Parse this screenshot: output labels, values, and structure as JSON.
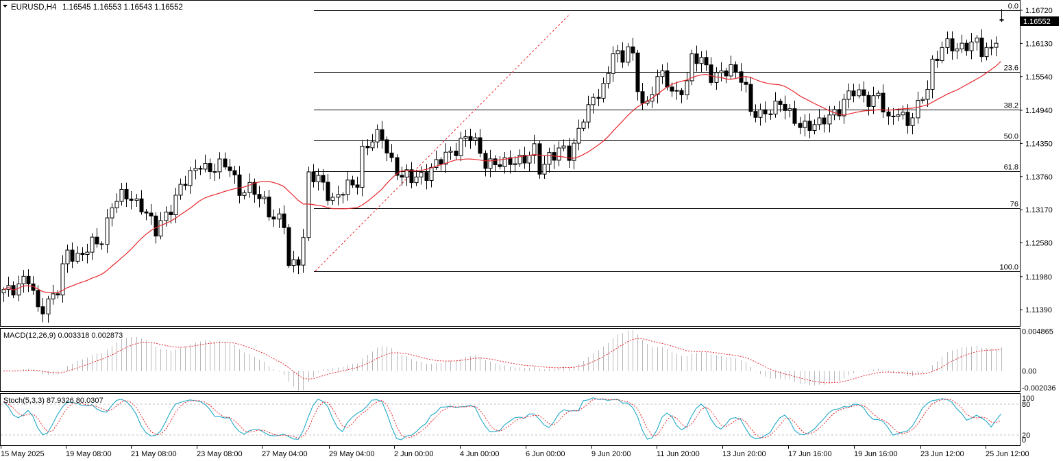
{
  "header": {
    "symbol_label": "EURUSD,H4",
    "ohlc": "1.16545 1.16553 1.16543 1.16552"
  },
  "price_axis": {
    "labels": [
      "1.16720",
      "1.16130",
      "1.15540",
      "1.14940",
      "1.14350",
      "1.13760",
      "1.13170",
      "1.12580",
      "1.11980",
      "1.11390"
    ],
    "current_price": "1.16552"
  },
  "fibonacci": {
    "levels": [
      "0.0",
      "23.6",
      "38.2",
      "50.0",
      "61.8",
      "76",
      "100.0"
    ],
    "ratios": [
      0,
      0.236,
      0.382,
      0.5,
      0.618,
      0.76,
      1.0
    ],
    "high": 1.1672,
    "low": 1.1208
  },
  "macd": {
    "label": "MACD(12,26,9) 0.003318 0.002873",
    "axis_labels": [
      "0.004865",
      "0.00",
      "-0.002036"
    ]
  },
  "stoch": {
    "label": "Stoch(5,3,3) 87.9326 80.0307",
    "axis_labels": [
      "100",
      "80",
      "20",
      "0"
    ]
  },
  "time_axis": {
    "labels": [
      "15 May 2025",
      "19 May 08:00",
      "21 May 08:00",
      "23 May 08:00",
      "27 May 04:00",
      "29 May 04:00",
      "2 Jun 00:00",
      "4 Jun 00:00",
      "6 Jun 00:00",
      "9 Jun 20:00",
      "11 Jun 20:00",
      "13 Jun 20:00",
      "17 Jun 16:00",
      "19 Jun 16:00",
      "23 Jun 12:00",
      "25 Jun 12:00"
    ]
  },
  "colors": {
    "up_body": "#ffffff",
    "down_body": "#000000",
    "ma": "#e8252b",
    "signal": "#e8252b",
    "stoch_main": "#1fa8c9",
    "hist": "#b8b8b8",
    "grid": "#c0c0c0"
  },
  "chart_data": {
    "type": "candlestick",
    "title": "EURUSD,H4",
    "ylim": [
      1.111,
      1.1689
    ],
    "anchors": [
      {
        "i": 0,
        "p": 1.1175
      },
      {
        "i": 5,
        "p": 1.119
      },
      {
        "i": 7,
        "p": 1.1142
      },
      {
        "i": 9,
        "p": 1.1155
      },
      {
        "i": 11,
        "p": 1.117
      },
      {
        "i": 13,
        "p": 1.1245
      },
      {
        "i": 15,
        "p": 1.1235
      },
      {
        "i": 17,
        "p": 1.1245
      },
      {
        "i": 20,
        "p": 1.1265
      },
      {
        "i": 22,
        "p": 1.133
      },
      {
        "i": 25,
        "p": 1.134
      },
      {
        "i": 28,
        "p": 1.1328
      },
      {
        "i": 31,
        "p": 1.1275
      },
      {
        "i": 33,
        "p": 1.131
      },
      {
        "i": 36,
        "p": 1.1355
      },
      {
        "i": 38,
        "p": 1.1375
      },
      {
        "i": 40,
        "p": 1.1405
      },
      {
        "i": 42,
        "p": 1.1385
      },
      {
        "i": 46,
        "p": 1.1398
      },
      {
        "i": 48,
        "p": 1.135
      },
      {
        "i": 51,
        "p": 1.1348
      },
      {
        "i": 53,
        "p": 1.1335
      },
      {
        "i": 55,
        "p": 1.13
      },
      {
        "i": 57,
        "p": 1.129
      },
      {
        "i": 58,
        "p": 1.1215
      },
      {
        "i": 60,
        "p": 1.1235
      },
      {
        "i": 61,
        "p": 1.1265
      },
      {
        "i": 62,
        "p": 1.1375
      },
      {
        "i": 65,
        "p": 1.1365
      },
      {
        "i": 67,
        "p": 1.1335
      },
      {
        "i": 70,
        "p": 1.1355
      },
      {
        "i": 72,
        "p": 1.137
      },
      {
        "i": 73,
        "p": 1.1425
      },
      {
        "i": 75,
        "p": 1.144
      },
      {
        "i": 77,
        "p": 1.1445
      },
      {
        "i": 79,
        "p": 1.1405
      },
      {
        "i": 81,
        "p": 1.1375
      },
      {
        "i": 83,
        "p": 1.137
      },
      {
        "i": 85,
        "p": 1.138
      },
      {
        "i": 88,
        "p": 1.1395
      },
      {
        "i": 91,
        "p": 1.142
      },
      {
        "i": 93,
        "p": 1.144
      },
      {
        "i": 95,
        "p": 1.1445
      },
      {
        "i": 98,
        "p": 1.1405
      },
      {
        "i": 100,
        "p": 1.14
      },
      {
        "i": 102,
        "p": 1.1393
      },
      {
        "i": 104,
        "p": 1.1408
      },
      {
        "i": 106,
        "p": 1.141
      },
      {
        "i": 108,
        "p": 1.1418
      },
      {
        "i": 109,
        "p": 1.1385
      },
      {
        "i": 111,
        "p": 1.1415
      },
      {
        "i": 113,
        "p": 1.1425
      },
      {
        "i": 115,
        "p": 1.141
      },
      {
        "i": 116,
        "p": 1.143
      },
      {
        "i": 118,
        "p": 1.149
      },
      {
        "i": 120,
        "p": 1.151
      },
      {
        "i": 122,
        "p": 1.153
      },
      {
        "i": 123,
        "p": 1.156
      },
      {
        "i": 124,
        "p": 1.161
      },
      {
        "i": 126,
        "p": 1.158
      },
      {
        "i": 127,
        "p": 1.161
      },
      {
        "i": 128,
        "p": 1.158
      },
      {
        "i": 129,
        "p": 1.153
      },
      {
        "i": 131,
        "p": 1.1505
      },
      {
        "i": 133,
        "p": 1.1555
      },
      {
        "i": 135,
        "p": 1.154
      },
      {
        "i": 137,
        "p": 1.1525
      },
      {
        "i": 139,
        "p": 1.1545
      },
      {
        "i": 140,
        "p": 1.158
      },
      {
        "i": 142,
        "p": 1.1585
      },
      {
        "i": 144,
        "p": 1.156
      },
      {
        "i": 146,
        "p": 1.1555
      },
      {
        "i": 148,
        "p": 1.1565
      },
      {
        "i": 150,
        "p": 1.156
      },
      {
        "i": 151,
        "p": 1.1535
      },
      {
        "i": 152,
        "p": 1.149
      },
      {
        "i": 154,
        "p": 1.148
      },
      {
        "i": 156,
        "p": 1.15
      },
      {
        "i": 158,
        "p": 1.151
      },
      {
        "i": 160,
        "p": 1.148
      },
      {
        "i": 162,
        "p": 1.147
      },
      {
        "i": 164,
        "p": 1.147
      },
      {
        "i": 166,
        "p": 1.1465
      },
      {
        "i": 168,
        "p": 1.1485
      },
      {
        "i": 170,
        "p": 1.15
      },
      {
        "i": 171,
        "p": 1.151
      },
      {
        "i": 173,
        "p": 1.1525
      },
      {
        "i": 175,
        "p": 1.152
      },
      {
        "i": 177,
        "p": 1.1515
      },
      {
        "i": 178,
        "p": 1.152
      },
      {
        "i": 180,
        "p": 1.147
      },
      {
        "i": 182,
        "p": 1.15
      },
      {
        "i": 184,
        "p": 1.147
      },
      {
        "i": 186,
        "p": 1.1495
      },
      {
        "i": 188,
        "p": 1.154
      },
      {
        "i": 189,
        "p": 1.158
      },
      {
        "i": 191,
        "p": 1.1605
      },
      {
        "i": 194,
        "p": 1.1605
      },
      {
        "i": 196,
        "p": 1.1615
      },
      {
        "i": 198,
        "p": 1.161
      },
      {
        "i": 199,
        "p": 1.1595
      },
      {
        "i": 201,
        "p": 1.1605
      },
      {
        "i": 202,
        "p": 1.163
      },
      {
        "i": 203,
        "p": 1.1655
      }
    ],
    "bars": 204,
    "ma_period": 20,
    "macd": {
      "fast": 12,
      "slow": 26,
      "signal": 9,
      "ylim": [
        -0.00245,
        0.00515
      ]
    },
    "stoch": {
      "k": 5,
      "d": 3,
      "smooth": 3,
      "ylim": [
        0,
        100
      ],
      "levels": [
        20,
        80
      ]
    }
  }
}
